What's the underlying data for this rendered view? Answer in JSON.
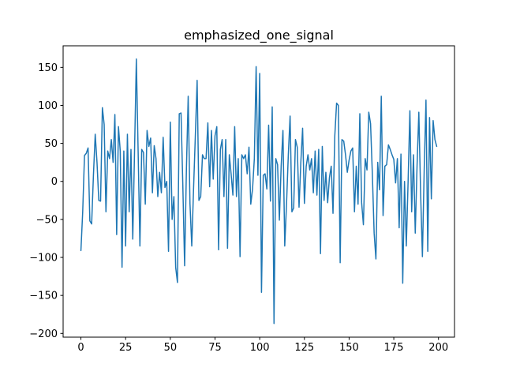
{
  "figure": {
    "background": "#ffffff",
    "spine_color": "#000000",
    "tick_color": "#000000"
  },
  "chart_data": {
    "type": "line",
    "title": "emphasized_one_signal",
    "xlabel": "",
    "ylabel": "",
    "grid": false,
    "legend": null,
    "xticks": [
      0,
      25,
      50,
      75,
      100,
      125,
      150,
      175,
      200
    ],
    "yticks": [
      -200,
      -150,
      -100,
      -50,
      0,
      50,
      100,
      150
    ],
    "xlim": [
      -9.95,
      208.95
    ],
    "ylim": [
      -204.9,
      178.4
    ],
    "series": [
      {
        "name": "emphasized_one_signal",
        "color": "#1f77b4",
        "line_width": 1.5,
        "x_start": 0,
        "x_step": 1,
        "values": [
          -91,
          -40,
          34,
          37,
          44,
          -52,
          -56,
          8,
          62,
          25,
          -25,
          -26,
          97,
          75,
          -40,
          40,
          30,
          55,
          25,
          88,
          -70,
          72,
          40,
          -113,
          40,
          -85,
          62,
          -40,
          42,
          -76,
          40,
          161,
          40,
          -85,
          42,
          38,
          -30,
          67,
          46,
          57,
          -15,
          47,
          30,
          -20,
          12,
          -15,
          58,
          -8,
          0,
          -92,
          78,
          -50,
          -20,
          -113,
          -133,
          89,
          90,
          -5,
          -111,
          15,
          112,
          -29,
          -85,
          -10,
          60,
          133,
          -25,
          -20,
          35,
          30,
          30,
          77,
          -7,
          67,
          3,
          60,
          72,
          -90,
          42,
          55,
          -20,
          55,
          -88,
          35,
          10,
          -18,
          72,
          -20,
          30,
          -99,
          35,
          30,
          35,
          10,
          45,
          -30,
          -10,
          30,
          151,
          8,
          142,
          -146,
          8,
          10,
          -10,
          74,
          -26,
          98,
          -187,
          30,
          22,
          -51,
          20,
          67,
          -85,
          -30,
          35,
          86,
          -40,
          -35,
          55,
          45,
          -34,
          25,
          70,
          -29,
          20,
          35,
          15,
          30,
          -15,
          40,
          -18,
          42,
          -95,
          46,
          -25,
          12,
          -28,
          5,
          20,
          -42,
          60,
          103,
          100,
          -107,
          55,
          53,
          35,
          12,
          28,
          40,
          44,
          -40,
          20,
          -30,
          89,
          -28,
          -57,
          30,
          15,
          91,
          76,
          10,
          -68,
          -102,
          25,
          -11,
          112,
          -45,
          20,
          22,
          48,
          42,
          35,
          29,
          -2,
          30,
          -61,
          36,
          -134,
          0,
          -85,
          0,
          93,
          -40,
          35,
          -68,
          20,
          91,
          -15,
          -99,
          15,
          107,
          -92,
          84,
          -23,
          80,
          55,
          46
        ]
      }
    ]
  }
}
